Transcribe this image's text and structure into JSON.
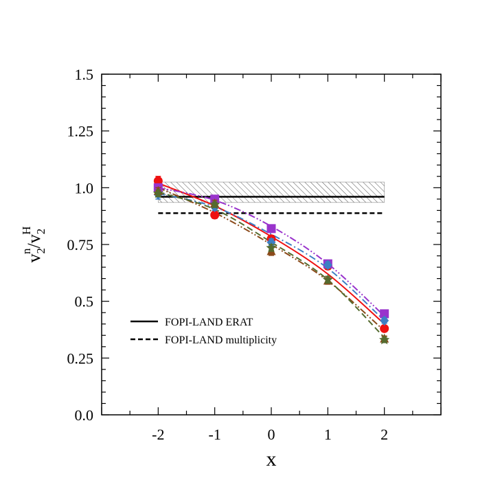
{
  "chart_data": {
    "type": "line",
    "xlabel": "x",
    "ylabel": {
      "base1": "v",
      "sub1": "2",
      "sup1": "n",
      "slash": "/",
      "base2": "v",
      "sub2": "2",
      "sup2": "H"
    },
    "xlim": [
      -3,
      3
    ],
    "ylim": [
      0,
      1.5
    ],
    "xticks": [
      -2,
      -1,
      0,
      1,
      2
    ],
    "xtick_labels": [
      "-2",
      "-1",
      "0",
      "1",
      "2"
    ],
    "yticks": [
      0,
      0.25,
      0.5,
      0.75,
      1.0,
      1.25,
      1.5
    ],
    "ytick_labels": [
      "0.0",
      "0.25",
      "0.5",
      "0.75",
      "1.0",
      "1.25",
      "1.5"
    ],
    "grid": false,
    "legend_position": "bottom-left",
    "bands": [
      {
        "label": "FOPI-LAND ERAT",
        "value": 0.96,
        "low": 0.935,
        "high": 1.025,
        "line_style": "solid",
        "hatched": true
      },
      {
        "label": "FOPI-LAND multiplicity",
        "value": 0.888,
        "line_style": "dashed",
        "hatched": false
      }
    ],
    "series": [
      {
        "color": "#ee1111",
        "marker": "circle",
        "line_style": "solid",
        "x": [
          -2,
          -1,
          0,
          1,
          2
        ],
        "y": [
          1.03,
          0.88,
          0.775,
          0.655,
          0.38
        ],
        "yerr": [
          0.02,
          0.015,
          0.015,
          0.015,
          0.012
        ],
        "fit_x": [
          -2,
          -1,
          0,
          1,
          2
        ],
        "fit_y": [
          1.02,
          0.92,
          0.785,
          0.62,
          0.4
        ]
      },
      {
        "color": "#9933cc",
        "marker": "square",
        "line_style": "dash-dot-dot",
        "x": [
          -2,
          -1,
          0,
          1,
          2
        ],
        "y": [
          1.0,
          0.95,
          0.82,
          0.665,
          0.445
        ],
        "yerr": [
          0.012,
          0.012,
          0.012,
          0.014,
          0.012
        ],
        "fit_x": [
          -2,
          -1,
          0,
          1,
          2
        ],
        "fit_y": [
          1.0,
          0.945,
          0.83,
          0.665,
          0.435
        ]
      },
      {
        "color": "#3d7fc4",
        "marker": "diamond",
        "line_style": "dash-dot",
        "x": [
          -2,
          -1,
          0,
          1,
          2
        ],
        "y": [
          0.97,
          0.915,
          0.76,
          0.66,
          0.415
        ],
        "yerr": [
          0.02,
          0.015,
          0.015,
          0.014,
          0.012
        ],
        "fit_x": [
          -2,
          -1,
          0,
          1,
          2
        ],
        "fit_y": [
          0.975,
          0.915,
          0.795,
          0.645,
          0.415
        ]
      },
      {
        "color": "#8b4a1a",
        "marker": "triangle",
        "line_style": "dash-dot-dot",
        "x": [
          -2,
          -1,
          0,
          1,
          2
        ],
        "y": [
          0.985,
          0.93,
          0.72,
          0.59,
          0.335
        ],
        "yerr": [
          0.015,
          0.015,
          0.018,
          0.015,
          0.012
        ],
        "fit_x": [
          -2,
          -1,
          0,
          1,
          2
        ],
        "fit_y": [
          1.0,
          0.89,
          0.75,
          0.59,
          0.37
        ]
      },
      {
        "color": "#556b2f",
        "marker": "star",
        "line_style": "dashed",
        "x": [
          -2,
          -1,
          0,
          1,
          2
        ],
        "y": [
          0.975,
          0.925,
          0.735,
          0.595,
          0.33
        ],
        "yerr": [
          0.015,
          0.012,
          0.015,
          0.015,
          0.012
        ],
        "fit_x": [
          -2,
          -1,
          0,
          1,
          2
        ],
        "fit_y": [
          0.98,
          0.905,
          0.76,
          0.595,
          0.34
        ]
      }
    ]
  }
}
